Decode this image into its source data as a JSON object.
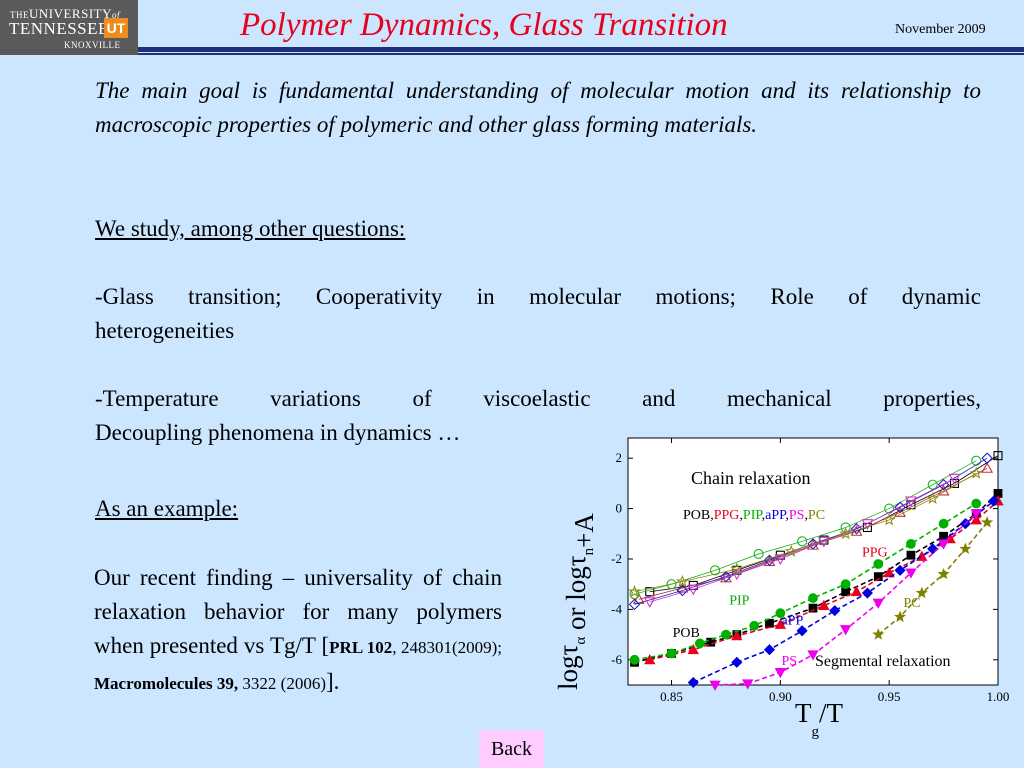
{
  "logo": {
    "line1_prefix": "THE",
    "line1": "UNIVERSITY",
    "line1_of": "of",
    "line2": "TENNESSEE",
    "badge": "UT",
    "line3": "KNOXVILLE"
  },
  "header": {
    "title": "Polymer Dynamics, Glass Transition",
    "date": "November 2009",
    "accent": "#e8001c",
    "bar_color": "#1f2f7a"
  },
  "body": {
    "intro": "The main goal is fundamental understanding of molecular motion and its relationship to macroscopic properties of polymeric and other glass forming materials.",
    "questions_heading": "We study, among other questions:",
    "bullet1_line1": "-Glass transition; Cooperativity in molecular motions; Role of dynamic",
    "bullet1_line2": "heterogeneities",
    "bullet2_line1": "-Temperature variations of viscoelastic and mechanical properties,",
    "bullet2_line2": "Decoupling phenomena in dynamics …",
    "example_heading": "As an example:",
    "finding_text": "Our recent finding – universality of chain relaxation behavior for many polymers when presented vs Tg/T [",
    "ref1_journal": "PRL 102",
    "ref1_rest": ", 248301(2009); ",
    "ref2_journal": "Macromolecules 39,",
    "ref2_rest": " 3322 (2006)",
    "finding_end": "]."
  },
  "back_button": "Back",
  "chart_data": {
    "type": "scatter",
    "ylabel_parts": [
      "log",
      "τ",
      "α",
      " or log",
      "τ",
      "n",
      "+A"
    ],
    "xlabel_parts": [
      "T",
      "g",
      "/T"
    ],
    "x_ticks": [
      "0.85",
      "0.90",
      "0.95",
      "1.00"
    ],
    "y_ticks": [
      "2",
      "0",
      "-2",
      "-4",
      "-6"
    ],
    "xlim": [
      0.83,
      1.0
    ],
    "ylim": [
      -7.0,
      2.8
    ],
    "annotations": {
      "chain": "Chain relaxation",
      "segmental": "Segmental relaxation",
      "chain_list": [
        {
          "text": "POB",
          "color": "#000000"
        },
        {
          "text": ",",
          "color": "#000000"
        },
        {
          "text": "PPG",
          "color": "#e8001c"
        },
        {
          "text": ",",
          "color": "#000000"
        },
        {
          "text": "PIP",
          "color": "#00b000"
        },
        {
          "text": ",",
          "color": "#000000"
        },
        {
          "text": "aPP",
          "color": "#0000dd"
        },
        {
          "text": ",",
          "color": "#000000"
        },
        {
          "text": "PS",
          "color": "#ee00ee"
        },
        {
          "text": ",",
          "color": "#000000"
        },
        {
          "text": "PC",
          "color": "#808000"
        }
      ],
      "labels": [
        {
          "text": "PPG",
          "color": "#e8001c",
          "x": 0.9375,
          "y": -1.9
        },
        {
          "text": "PIP",
          "color": "#00b000",
          "x": 0.8765,
          "y": -3.8
        },
        {
          "text": "aPP",
          "color": "#0000dd",
          "x": 0.9005,
          "y": -4.6
        },
        {
          "text": "POB",
          "color": "#000000",
          "x": 0.8505,
          "y": -5.1
        },
        {
          "text": "PS",
          "color": "#ee00ee",
          "x": 0.9005,
          "y": -6.2
        },
        {
          "text": "PC",
          "color": "#808000",
          "x": 0.9565,
          "y": -3.9
        }
      ]
    },
    "series": [
      {
        "name": "POB",
        "kind": "segmental",
        "color": "#000000",
        "marker": "square",
        "x": [
          0.833,
          0.85,
          0.868,
          0.88,
          0.895,
          0.915,
          0.93,
          0.945,
          0.96,
          0.975,
          0.99,
          1.0
        ],
        "y": [
          -6.1,
          -5.75,
          -5.3,
          -5.0,
          -4.55,
          -3.95,
          -3.3,
          -2.7,
          -1.85,
          -1.1,
          -0.2,
          0.6
        ]
      },
      {
        "name": "PPG",
        "kind": "segmental",
        "color": "#e8001c",
        "marker": "triangle",
        "x": [
          0.84,
          0.86,
          0.88,
          0.9,
          0.92,
          0.935,
          0.95,
          0.965,
          0.978,
          0.99,
          1.0
        ],
        "y": [
          -6.0,
          -5.6,
          -5.05,
          -4.6,
          -3.85,
          -3.3,
          -2.55,
          -1.9,
          -1.2,
          -0.45,
          0.3
        ]
      },
      {
        "name": "PIP",
        "kind": "segmental",
        "color": "#00b000",
        "marker": "circle",
        "x": [
          0.833,
          0.85,
          0.863,
          0.875,
          0.888,
          0.9,
          0.915,
          0.93,
          0.945,
          0.96,
          0.975,
          0.99
        ],
        "y": [
          -6.0,
          -5.75,
          -5.35,
          -5.0,
          -4.65,
          -4.15,
          -3.55,
          -3.0,
          -2.2,
          -1.4,
          -0.6,
          0.2
        ]
      },
      {
        "name": "aPP",
        "kind": "segmental",
        "color": "#0000dd",
        "marker": "diamond",
        "x": [
          0.86,
          0.88,
          0.895,
          0.91,
          0.925,
          0.94,
          0.955,
          0.97,
          0.985,
          0.998
        ],
        "y": [
          -6.9,
          -6.1,
          -5.6,
          -4.85,
          -4.05,
          -3.35,
          -2.45,
          -1.6,
          -0.6,
          0.3
        ]
      },
      {
        "name": "PS",
        "kind": "segmental",
        "color": "#ee00ee",
        "marker": "trianglev",
        "x": [
          0.87,
          0.885,
          0.9,
          0.915,
          0.93,
          0.945,
          0.96,
          0.975,
          0.99
        ],
        "y": [
          -7.0,
          -6.95,
          -6.5,
          -5.8,
          -4.8,
          -3.75,
          -2.55,
          -1.4,
          -0.2
        ]
      },
      {
        "name": "PC",
        "kind": "segmental",
        "color": "#808000",
        "marker": "star",
        "x": [
          0.945,
          0.955,
          0.965,
          0.975,
          0.985,
          0.995
        ],
        "y": [
          -5.0,
          -4.3,
          -3.35,
          -2.6,
          -1.6,
          -0.55
        ]
      },
      {
        "name": "POB",
        "kind": "chain",
        "color": "#000000",
        "marker": "osquare",
        "x": [
          0.84,
          0.86,
          0.88,
          0.9,
          0.92,
          0.94,
          0.96,
          0.98,
          1.0
        ],
        "y": [
          -3.3,
          -3.05,
          -2.45,
          -1.85,
          -1.25,
          -0.75,
          0.15,
          1.0,
          2.1
        ]
      },
      {
        "name": "PPG",
        "kind": "chain",
        "color": "#c03030",
        "marker": "otriangle",
        "x": [
          0.835,
          0.855,
          0.875,
          0.895,
          0.915,
          0.935,
          0.955,
          0.975,
          0.995
        ],
        "y": [
          -3.6,
          -3.15,
          -2.75,
          -2.1,
          -1.45,
          -0.9,
          -0.15,
          0.7,
          1.6
        ]
      },
      {
        "name": "PIP",
        "kind": "chain",
        "color": "#20b020",
        "marker": "ocircle",
        "x": [
          0.833,
          0.85,
          0.87,
          0.89,
          0.91,
          0.93,
          0.95,
          0.97,
          0.99
        ],
        "y": [
          -3.4,
          -3.0,
          -2.45,
          -1.8,
          -1.3,
          -0.75,
          0.0,
          0.95,
          1.9
        ]
      },
      {
        "name": "aPP",
        "kind": "chain",
        "color": "#2020c0",
        "marker": "odiamond",
        "x": [
          0.833,
          0.855,
          0.875,
          0.895,
          0.915,
          0.935,
          0.955,
          0.975,
          0.995
        ],
        "y": [
          -3.8,
          -3.25,
          -2.7,
          -2.05,
          -1.4,
          -0.8,
          0.05,
          0.95,
          2.0
        ]
      },
      {
        "name": "PS",
        "kind": "chain",
        "color": "#cc33cc",
        "marker": "otrianglev",
        "x": [
          0.84,
          0.86,
          0.88,
          0.9,
          0.92,
          0.94,
          0.96,
          0.98
        ],
        "y": [
          -3.7,
          -3.2,
          -2.6,
          -2.0,
          -1.3,
          -0.6,
          0.3,
          1.2
        ]
      },
      {
        "name": "PC",
        "kind": "chain",
        "color": "#909020",
        "marker": "ostar",
        "x": [
          0.833,
          0.855,
          0.88,
          0.905,
          0.93,
          0.95,
          0.97,
          0.99
        ],
        "y": [
          -3.3,
          -2.9,
          -2.4,
          -1.7,
          -1.0,
          -0.45,
          0.4,
          1.4
        ]
      }
    ]
  }
}
